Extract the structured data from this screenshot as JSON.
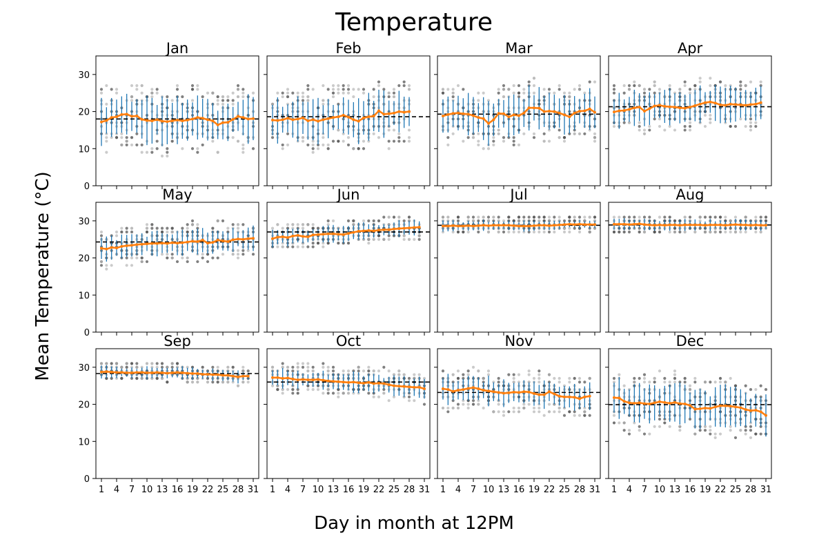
{
  "figure": {
    "title": "Temperature",
    "ylabel": "Mean Temperature (°C)",
    "xlabel": "Day in month at 12PM"
  },
  "colors": {
    "mean_line": "#ff7f0e",
    "error_bar": "#1f77b4",
    "scatter": "#000000",
    "monthly_mean": "#000000"
  },
  "chart_data": {
    "type": "line",
    "layout": "3x4 small multiples, shared axes",
    "ylim": [
      0,
      35
    ],
    "yticks": [
      0,
      10,
      20,
      30
    ],
    "xticks": [
      1,
      4,
      7,
      10,
      13,
      16,
      19,
      22,
      25,
      28,
      31
    ],
    "grid": false,
    "legend": "none",
    "markers": "grey scatter of individual readings, blue error bars, orange daily mean line, black dashed monthly mean",
    "panels": [
      {
        "month": "Jan",
        "days": 31,
        "monthly_mean": 18.0,
        "daily_mean": [
          17.2,
          17.6,
          18.4,
          18.6,
          19.2,
          19.3,
          18.7,
          18.8,
          17.9,
          17.6,
          17.5,
          17.8,
          17.4,
          17.3,
          17.5,
          17.7,
          17.5,
          17.7,
          18.0,
          18.4,
          18.2,
          17.8,
          17.5,
          16.4,
          17.0,
          17.1,
          17.9,
          18.7,
          18.4,
          18.0,
          18.1
        ]
      },
      {
        "month": "Feb",
        "days": 28,
        "monthly_mean": 18.6,
        "daily_mean": [
          17.7,
          17.6,
          17.8,
          18.2,
          17.8,
          18.0,
          18.3,
          17.5,
          17.8,
          17.4,
          17.8,
          18.1,
          18.4,
          18.6,
          19.0,
          18.5,
          17.8,
          17.4,
          18.3,
          18.6,
          18.8,
          20.2,
          19.3,
          19.4,
          19.6,
          20.0,
          19.8,
          20.0
        ]
      },
      {
        "month": "Mar",
        "days": 31,
        "monthly_mean": 19.3,
        "daily_mean": [
          18.8,
          19.2,
          19.5,
          19.6,
          19.4,
          19.3,
          18.9,
          18.4,
          18.1,
          16.8,
          17.8,
          19.5,
          19.4,
          18.6,
          19.1,
          18.9,
          19.6,
          21.0,
          21.0,
          20.9,
          20.0,
          20.1,
          20.0,
          19.6,
          19.1,
          18.6,
          19.6,
          20.1,
          20.2,
          20.7,
          19.8
        ]
      },
      {
        "month": "Apr",
        "days": 30,
        "monthly_mean": 21.3,
        "daily_mean": [
          19.9,
          20.2,
          20.3,
          20.6,
          21.0,
          21.2,
          20.1,
          20.8,
          21.5,
          21.7,
          21.4,
          21.3,
          21.2,
          21.0,
          20.9,
          21.2,
          21.6,
          22.0,
          22.4,
          22.6,
          22.3,
          21.8,
          21.7,
          22.0,
          21.9,
          21.8,
          21.7,
          21.9,
          22.0,
          22.4
        ]
      },
      {
        "month": "May",
        "days": 31,
        "monthly_mean": 24.3,
        "daily_mean": [
          22.6,
          22.4,
          22.8,
          22.7,
          23.1,
          23.3,
          23.4,
          23.6,
          23.7,
          23.8,
          23.9,
          23.9,
          24.0,
          23.9,
          24.1,
          24.0,
          24.1,
          24.3,
          24.5,
          24.4,
          24.8,
          24.0,
          24.2,
          24.8,
          24.6,
          24.4,
          24.9,
          25.1,
          25.0,
          25.2,
          25.3
        ]
      },
      {
        "month": "Jun",
        "days": 30,
        "monthly_mean": 27.0,
        "daily_mean": [
          25.2,
          25.6,
          25.7,
          25.5,
          25.9,
          26.1,
          25.8,
          25.7,
          26.2,
          26.3,
          26.4,
          26.5,
          26.5,
          26.4,
          26.3,
          26.6,
          26.9,
          27.2,
          27.3,
          27.4,
          27.3,
          27.5,
          27.6,
          27.6,
          27.8,
          27.9,
          28.0,
          28.1,
          28.2,
          28.3
        ]
      },
      {
        "month": "Jul",
        "days": 31,
        "monthly_mean": 28.8,
        "daily_mean": [
          28.6,
          28.6,
          28.7,
          28.6,
          28.6,
          28.7,
          28.6,
          28.7,
          28.8,
          28.7,
          28.8,
          28.8,
          28.8,
          28.8,
          28.7,
          28.6,
          28.6,
          28.6,
          28.7,
          28.8,
          28.8,
          28.7,
          28.8,
          28.9,
          29.0,
          29.1,
          29.0,
          29.1,
          29.0,
          29.0,
          29.0
        ]
      },
      {
        "month": "Aug",
        "days": 31,
        "monthly_mean": 28.9,
        "daily_mean": [
          29.1,
          29.1,
          29.1,
          29.0,
          29.1,
          29.2,
          29.0,
          28.9,
          28.8,
          28.9,
          28.8,
          28.9,
          28.9,
          28.8,
          28.9,
          28.9,
          28.9,
          28.9,
          28.8,
          28.9,
          28.9,
          28.9,
          28.8,
          28.9,
          29.0,
          28.9,
          28.9,
          28.8,
          28.9,
          28.8,
          28.8
        ]
      },
      {
        "month": "Sep",
        "days": 30,
        "monthly_mean": 28.3,
        "daily_mean": [
          28.7,
          28.8,
          28.7,
          28.6,
          28.6,
          28.5,
          28.5,
          28.6,
          28.6,
          28.5,
          28.5,
          28.6,
          28.5,
          28.4,
          28.5,
          28.6,
          28.5,
          28.4,
          28.3,
          28.3,
          28.1,
          28.1,
          28.0,
          28.0,
          27.8,
          27.8,
          27.6,
          27.4,
          27.6,
          27.6
        ]
      },
      {
        "month": "Oct",
        "days": 31,
        "monthly_mean": 26.0,
        "daily_mean": [
          27.2,
          27.2,
          27.0,
          27.1,
          26.8,
          26.6,
          26.7,
          26.6,
          26.6,
          26.7,
          26.5,
          26.3,
          26.2,
          26.1,
          26.0,
          25.9,
          26.0,
          25.8,
          25.7,
          25.9,
          25.6,
          25.7,
          25.6,
          25.3,
          25.0,
          24.9,
          24.8,
          24.7,
          24.6,
          24.6,
          24.2
        ]
      },
      {
        "month": "Nov",
        "days": 30,
        "monthly_mean": 23.2,
        "daily_mean": [
          24.2,
          24.0,
          23.5,
          23.8,
          24.0,
          24.3,
          24.5,
          24.2,
          23.8,
          23.6,
          23.4,
          23.2,
          23.0,
          23.1,
          23.3,
          23.2,
          23.4,
          23.3,
          22.9,
          22.6,
          22.6,
          23.4,
          22.8,
          22.2,
          22.0,
          22.0,
          21.9,
          21.5,
          22.0,
          22.2
        ]
      },
      {
        "month": "Dec",
        "days": 31,
        "monthly_mean": 19.9,
        "daily_mean": [
          21.8,
          21.7,
          20.8,
          20.4,
          20.3,
          20.4,
          20.2,
          20.1,
          20.4,
          20.7,
          20.5,
          20.3,
          20.5,
          20.2,
          20.1,
          19.7,
          18.7,
          18.8,
          19.0,
          18.9,
          19.3,
          19.6,
          19.6,
          19.5,
          19.3,
          19.1,
          18.6,
          18.3,
          18.4,
          18.0,
          17.0
        ]
      }
    ]
  }
}
